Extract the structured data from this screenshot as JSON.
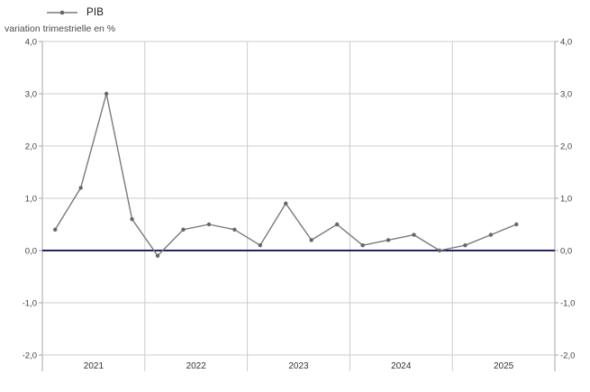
{
  "subtitle": "variation trimestrielle en %",
  "legend": {
    "label": "PIB",
    "position": "top-left"
  },
  "chart_data": {
    "type": "line",
    "title": "",
    "ylabel": "variation trimestrielle en %",
    "xlabel": "",
    "ylim": [
      -2.0,
      4.0
    ],
    "yticks": [
      4.0,
      3.0,
      2.0,
      1.0,
      0.0,
      -1.0,
      -2.0
    ],
    "ytick_labels": [
      "4,0",
      "3,0",
      "2,0",
      "1,0",
      "0,0",
      "-1,0",
      "-2,0"
    ],
    "year_labels": [
      "2021",
      "2022",
      "2023",
      "2024",
      "2025"
    ],
    "quarters_per_year": 4,
    "x": [
      "2021-T1",
      "2021-T2",
      "2021-T3",
      "2021-T4",
      "2022-T1",
      "2022-T2",
      "2022-T3",
      "2022-T4",
      "2023-T1",
      "2023-T2",
      "2023-T3",
      "2023-T4",
      "2024-T1",
      "2024-T2",
      "2024-T3",
      "2024-T4",
      "2025-T1",
      "2025-T2",
      "2025-T3"
    ],
    "series": [
      {
        "name": "PIB",
        "values": [
          0.4,
          1.2,
          3.0,
          0.6,
          -0.1,
          0.4,
          0.5,
          0.4,
          0.1,
          0.9,
          0.2,
          0.5,
          0.1,
          0.2,
          0.3,
          0.0,
          0.1,
          0.3,
          0.5
        ]
      }
    ],
    "grid": "on",
    "zero_line": true,
    "colors": {
      "line": "#7a7a7a",
      "marker": "#666666",
      "zero_line": "#24245e",
      "grid": "#cccccc",
      "spine": "#a6a6a6",
      "tick_text": "#404040",
      "year_text": "#333333"
    }
  }
}
